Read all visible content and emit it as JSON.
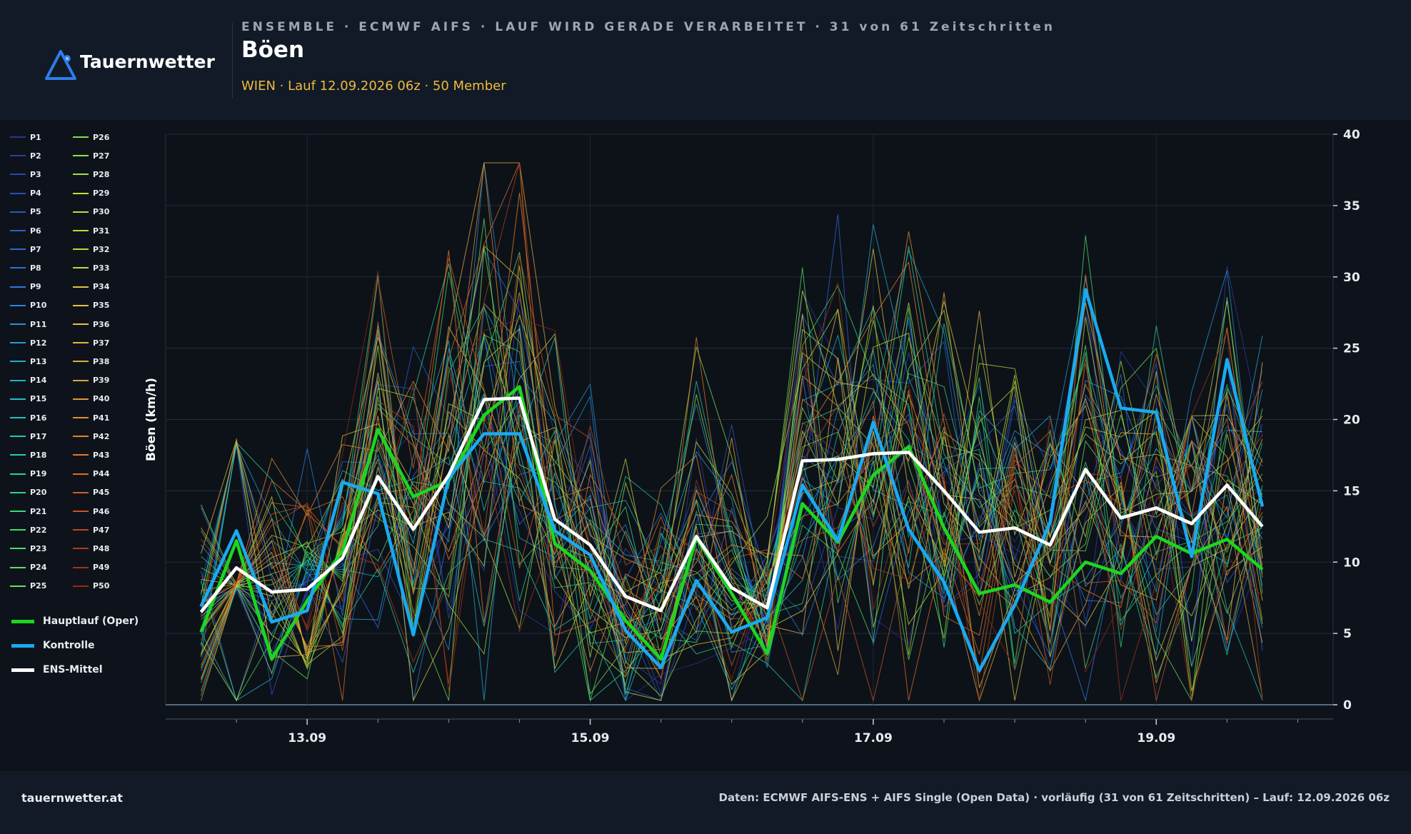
{
  "brand": {
    "name": "Tauernwetter",
    "logo_icon": "mountain-triangle-icon",
    "accent": "#2f7dea"
  },
  "header": {
    "superline": "ENSEMBLE · ECMWF AIFS · LAUF WIRD GERADE VERARBEITET · 31 von 61 Zeitschritten",
    "title": "Böen",
    "subtitle": "WIEN · Lauf 12.09.2026 06z · 50 Member"
  },
  "footer": {
    "site": "tauernwetter.at",
    "source": "Daten: ECMWF AIFS-ENS + AIFS Single (Open Data) · vorläufig (31 von 61 Zeitschritten) – Lauf: 12.09.2026 06z"
  },
  "chart_data": {
    "type": "line",
    "ylabel": "Böen (km/h)",
    "ylim": [
      0,
      40
    ],
    "yticks": [
      0,
      5,
      10,
      15,
      20,
      25,
      30,
      35,
      40
    ],
    "xlim": [
      0,
      8.25
    ],
    "xticks": [
      {
        "value": 1,
        "label": "13.09"
      },
      {
        "value": 3,
        "label": "15.09"
      },
      {
        "value": 5,
        "label": "17.09"
      },
      {
        "value": 7,
        "label": "19.09"
      }
    ],
    "x": [
      0.25,
      0.5,
      0.75,
      1.0,
      1.25,
      1.5,
      1.75,
      2.0,
      2.25,
      2.5,
      2.75,
      3.0,
      3.25,
      3.5,
      3.75,
      4.0,
      4.25,
      4.5,
      4.75,
      5.0,
      5.25,
      5.5,
      5.75,
      6.0,
      6.25,
      6.5,
      6.75,
      7.0,
      7.25,
      7.5,
      7.75
    ],
    "grid": true,
    "legend": "left",
    "member_count": 50,
    "member_label_prefix": "P",
    "highlight_series": [
      {
        "name": "Hauptlauf (Oper)",
        "color": "#1ed61e",
        "values": [
          5.1,
          11.5,
          3.2,
          7.3,
          10.8,
          19.3,
          14.6,
          15.7,
          20.3,
          22.3,
          11.3,
          9.4,
          5.9,
          3.2,
          11.7,
          7.8,
          3.6,
          14.1,
          11.4,
          16.1,
          18.1,
          12.4,
          7.8,
          8.4,
          7.2,
          10.0,
          9.2,
          11.8,
          10.6,
          11.6,
          9.5
        ]
      },
      {
        "name": "Kontrolle",
        "color": "#1aaaf0",
        "values": [
          6.9,
          12.2,
          5.8,
          6.6,
          15.6,
          14.8,
          4.9,
          15.9,
          19.0,
          19.0,
          12.2,
          10.5,
          5.2,
          2.6,
          8.7,
          5.1,
          6.1,
          15.4,
          11.5,
          19.8,
          12.3,
          8.6,
          2.4,
          7.0,
          12.8,
          29.1,
          20.8,
          20.5,
          10.4,
          24.2,
          13.9
        ]
      },
      {
        "name": "ENS-Mittel",
        "color": "#ffffff",
        "values": [
          6.5,
          9.6,
          7.9,
          8.1,
          10.3,
          16.0,
          12.3,
          16.1,
          21.4,
          21.5,
          13.0,
          11.2,
          7.6,
          6.6,
          11.8,
          8.2,
          6.8,
          17.1,
          17.2,
          17.6,
          17.7,
          15.0,
          12.1,
          12.4,
          11.2,
          16.5,
          13.1,
          13.8,
          12.7,
          15.4,
          12.5
        ]
      }
    ]
  }
}
